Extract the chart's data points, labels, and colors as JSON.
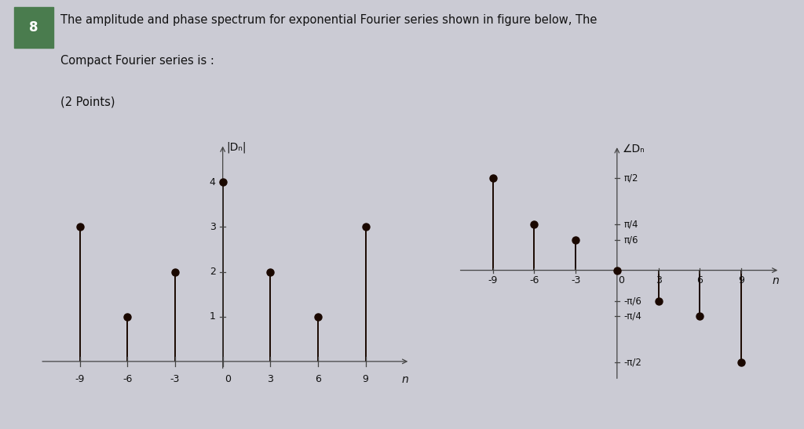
{
  "question_number": "8",
  "question_box_color": "#4a7c4e",
  "bg_color_top": "#cbcbd4",
  "bg_color_chart": "#e4e4ea",
  "line1": "The amplitude and phase spectrum for exponential Fourier series shown in figure below, The",
  "line2": "Compact Fourier series is :",
  "line3": "(2 Points)",
  "amp_n": [
    -9,
    -6,
    -3,
    0,
    3,
    6,
    9
  ],
  "amp_values": [
    3,
    1,
    2,
    4,
    2,
    1,
    3
  ],
  "amp_ylabel": "|Dₙ|",
  "amp_xlabel": "n",
  "amp_yticks": [
    1,
    2,
    3,
    4
  ],
  "amp_xticks": [
    -9,
    -6,
    -3,
    0,
    3,
    6,
    9
  ],
  "phase_n": [
    -9,
    -6,
    -3,
    0,
    3,
    6,
    9
  ],
  "phase_values_pi": [
    0.5,
    0.25,
    0.1667,
    0,
    -0.1667,
    -0.25,
    -0.5
  ],
  "phase_ylabel": "∠Dₙ",
  "phase_xlabel": "n",
  "phase_ytick_labels": [
    "π/2",
    "π/4",
    "π/6",
    "-π/6",
    "-π/4",
    "-π/2"
  ],
  "phase_ytick_values_pi": [
    0.5,
    0.25,
    0.1667,
    -0.1667,
    -0.25,
    -0.5
  ],
  "phase_xticks": [
    -9,
    -6,
    -3,
    0,
    3,
    6,
    9
  ],
  "stem_color": "#1a0800",
  "marker_color": "#1a0800",
  "axis_color": "#444444",
  "text_color": "#111111"
}
